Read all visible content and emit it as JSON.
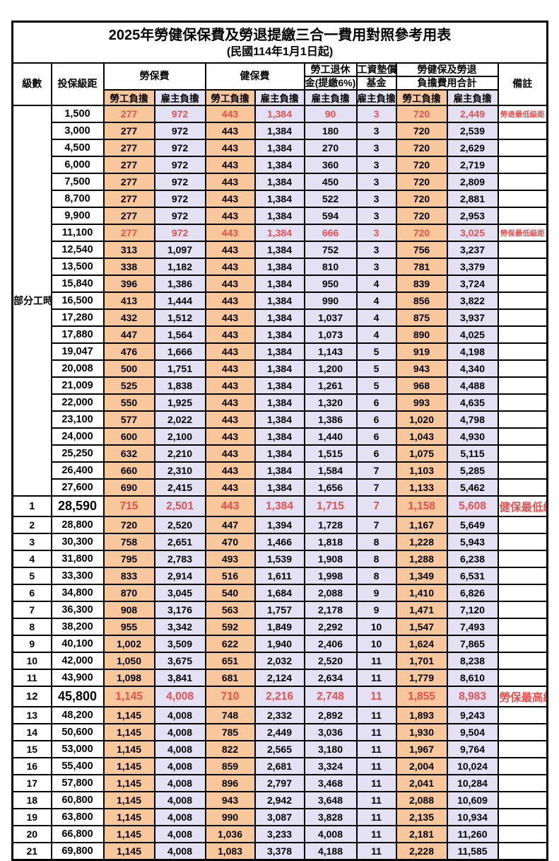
{
  "title": "2025年勞健保保費及勞退提繳三合一費用對照參考用表",
  "subtitle": "(民國114年1月1日起)",
  "header": {
    "level": "級數",
    "bracket": "投保級距",
    "labor_ins": "勞保費",
    "health_ins": "健保費",
    "pension_line1": "勞工退休",
    "pension_line2": "金(提繳6%)",
    "wage_fund_line1": "工資墊償",
    "wage_fund_line2": "基金",
    "total_line1": "勞健保及勞退",
    "total_line2": "負擔費用合計",
    "remarks": "備註",
    "employee": "勞工負擔",
    "employer": "雇主負擔"
  },
  "colors": {
    "employee_bg": "#F9C79C",
    "employer_bg": "#E3E1F3",
    "highlight_red": "#E85050",
    "border": "#000000"
  },
  "part_time": {
    "label": "部分工時",
    "span": 23
  },
  "rows": [
    {
      "level": "",
      "bracket": "1,500",
      "li_emp": "277",
      "li_er": "972",
      "hi_emp": "443",
      "hi_er": "1,384",
      "pension": "90",
      "fund": "3",
      "tot_emp": "720",
      "tot_er": "2,449",
      "remark": "勞退最低級距",
      "red": true,
      "big": false
    },
    {
      "level": "",
      "bracket": "3,000",
      "li_emp": "277",
      "li_er": "972",
      "hi_emp": "443",
      "hi_er": "1,384",
      "pension": "180",
      "fund": "3",
      "tot_emp": "720",
      "tot_er": "2,539",
      "remark": "",
      "red": false,
      "big": false
    },
    {
      "level": "",
      "bracket": "4,500",
      "li_emp": "277",
      "li_er": "972",
      "hi_emp": "443",
      "hi_er": "1,384",
      "pension": "270",
      "fund": "3",
      "tot_emp": "720",
      "tot_er": "2,629",
      "remark": "",
      "red": false,
      "big": false
    },
    {
      "level": "",
      "bracket": "6,000",
      "li_emp": "277",
      "li_er": "972",
      "hi_emp": "443",
      "hi_er": "1,384",
      "pension": "360",
      "fund": "3",
      "tot_emp": "720",
      "tot_er": "2,719",
      "remark": "",
      "red": false,
      "big": false
    },
    {
      "level": "",
      "bracket": "7,500",
      "li_emp": "277",
      "li_er": "972",
      "hi_emp": "443",
      "hi_er": "1,384",
      "pension": "450",
      "fund": "3",
      "tot_emp": "720",
      "tot_er": "2,809",
      "remark": "",
      "red": false,
      "big": false
    },
    {
      "level": "",
      "bracket": "8,700",
      "li_emp": "277",
      "li_er": "972",
      "hi_emp": "443",
      "hi_er": "1,384",
      "pension": "522",
      "fund": "3",
      "tot_emp": "720",
      "tot_er": "2,881",
      "remark": "",
      "red": false,
      "big": false
    },
    {
      "level": "",
      "bracket": "9,900",
      "li_emp": "277",
      "li_er": "972",
      "hi_emp": "443",
      "hi_er": "1,384",
      "pension": "594",
      "fund": "3",
      "tot_emp": "720",
      "tot_er": "2,953",
      "remark": "",
      "red": false,
      "big": false
    },
    {
      "level": "",
      "bracket": "11,100",
      "li_emp": "277",
      "li_er": "972",
      "hi_emp": "443",
      "hi_er": "1,384",
      "pension": "666",
      "fund": "3",
      "tot_emp": "720",
      "tot_er": "3,025",
      "remark": "勞保最低級距",
      "red": true,
      "big": false
    },
    {
      "level": "",
      "bracket": "12,540",
      "li_emp": "313",
      "li_er": "1,097",
      "hi_emp": "443",
      "hi_er": "1,384",
      "pension": "752",
      "fund": "3",
      "tot_emp": "756",
      "tot_er": "3,237",
      "remark": "",
      "red": false,
      "big": false
    },
    {
      "level": "",
      "bracket": "13,500",
      "li_emp": "338",
      "li_er": "1,182",
      "hi_emp": "443",
      "hi_er": "1,384",
      "pension": "810",
      "fund": "3",
      "tot_emp": "781",
      "tot_er": "3,379",
      "remark": "",
      "red": false,
      "big": false
    },
    {
      "level": "",
      "bracket": "15,840",
      "li_emp": "396",
      "li_er": "1,386",
      "hi_emp": "443",
      "hi_er": "1,384",
      "pension": "950",
      "fund": "4",
      "tot_emp": "839",
      "tot_er": "3,724",
      "remark": "",
      "red": false,
      "big": false
    },
    {
      "level": "",
      "bracket": "16,500",
      "li_emp": "413",
      "li_er": "1,444",
      "hi_emp": "443",
      "hi_er": "1,384",
      "pension": "990",
      "fund": "4",
      "tot_emp": "856",
      "tot_er": "3,822",
      "remark": "",
      "red": false,
      "big": false
    },
    {
      "level": "",
      "bracket": "17,280",
      "li_emp": "432",
      "li_er": "1,512",
      "hi_emp": "443",
      "hi_er": "1,384",
      "pension": "1,037",
      "fund": "4",
      "tot_emp": "875",
      "tot_er": "3,937",
      "remark": "",
      "red": false,
      "big": false
    },
    {
      "level": "",
      "bracket": "17,880",
      "li_emp": "447",
      "li_er": "1,564",
      "hi_emp": "443",
      "hi_er": "1,384",
      "pension": "1,073",
      "fund": "4",
      "tot_emp": "890",
      "tot_er": "4,025",
      "remark": "",
      "red": false,
      "big": false
    },
    {
      "level": "",
      "bracket": "19,047",
      "li_emp": "476",
      "li_er": "1,666",
      "hi_emp": "443",
      "hi_er": "1,384",
      "pension": "1,143",
      "fund": "5",
      "tot_emp": "919",
      "tot_er": "4,198",
      "remark": "",
      "red": false,
      "big": false
    },
    {
      "level": "",
      "bracket": "20,008",
      "li_emp": "500",
      "li_er": "1,751",
      "hi_emp": "443",
      "hi_er": "1,384",
      "pension": "1,200",
      "fund": "5",
      "tot_emp": "943",
      "tot_er": "4,340",
      "remark": "",
      "red": false,
      "big": false
    },
    {
      "level": "",
      "bracket": "21,009",
      "li_emp": "525",
      "li_er": "1,838",
      "hi_emp": "443",
      "hi_er": "1,384",
      "pension": "1,261",
      "fund": "5",
      "tot_emp": "968",
      "tot_er": "4,488",
      "remark": "",
      "red": false,
      "big": false
    },
    {
      "level": "",
      "bracket": "22,000",
      "li_emp": "550",
      "li_er": "1,925",
      "hi_emp": "443",
      "hi_er": "1,384",
      "pension": "1,320",
      "fund": "6",
      "tot_emp": "993",
      "tot_er": "4,635",
      "remark": "",
      "red": false,
      "big": false
    },
    {
      "level": "",
      "bracket": "23,100",
      "li_emp": "577",
      "li_er": "2,022",
      "hi_emp": "443",
      "hi_er": "1,384",
      "pension": "1,386",
      "fund": "6",
      "tot_emp": "1,020",
      "tot_er": "4,798",
      "remark": "",
      "red": false,
      "big": false
    },
    {
      "level": "",
      "bracket": "24,000",
      "li_emp": "600",
      "li_er": "2,100",
      "hi_emp": "443",
      "hi_er": "1,384",
      "pension": "1,440",
      "fund": "6",
      "tot_emp": "1,043",
      "tot_er": "4,930",
      "remark": "",
      "red": false,
      "big": false
    },
    {
      "level": "",
      "bracket": "25,250",
      "li_emp": "632",
      "li_er": "2,210",
      "hi_emp": "443",
      "hi_er": "1,384",
      "pension": "1,515",
      "fund": "6",
      "tot_emp": "1,075",
      "tot_er": "5,115",
      "remark": "",
      "red": false,
      "big": false
    },
    {
      "level": "",
      "bracket": "26,400",
      "li_emp": "660",
      "li_er": "2,310",
      "hi_emp": "443",
      "hi_er": "1,384",
      "pension": "1,584",
      "fund": "7",
      "tot_emp": "1,103",
      "tot_er": "5,285",
      "remark": "",
      "red": false,
      "big": false
    },
    {
      "level": "",
      "bracket": "27,600",
      "li_emp": "690",
      "li_er": "2,415",
      "hi_emp": "443",
      "hi_er": "1,384",
      "pension": "1,656",
      "fund": "7",
      "tot_emp": "1,133",
      "tot_er": "5,462",
      "remark": "",
      "red": false,
      "big": false
    },
    {
      "level": "1",
      "bracket": "28,590",
      "li_emp": "715",
      "li_er": "2,501",
      "hi_emp": "443",
      "hi_er": "1,384",
      "pension": "1,715",
      "fund": "7",
      "tot_emp": "1,158",
      "tot_er": "5,608",
      "remark": "健保最低級距",
      "red": true,
      "big": true
    },
    {
      "level": "2",
      "bracket": "28,800",
      "li_emp": "720",
      "li_er": "2,520",
      "hi_emp": "447",
      "hi_er": "1,394",
      "pension": "1,728",
      "fund": "7",
      "tot_emp": "1,167",
      "tot_er": "5,649",
      "remark": "",
      "red": false,
      "big": false
    },
    {
      "level": "3",
      "bracket": "30,300",
      "li_emp": "758",
      "li_er": "2,651",
      "hi_emp": "470",
      "hi_er": "1,466",
      "pension": "1,818",
      "fund": "8",
      "tot_emp": "1,228",
      "tot_er": "5,943",
      "remark": "",
      "red": false,
      "big": false
    },
    {
      "level": "4",
      "bracket": "31,800",
      "li_emp": "795",
      "li_er": "2,783",
      "hi_emp": "493",
      "hi_er": "1,539",
      "pension": "1,908",
      "fund": "8",
      "tot_emp": "1,288",
      "tot_er": "6,238",
      "remark": "",
      "red": false,
      "big": false
    },
    {
      "level": "5",
      "bracket": "33,300",
      "li_emp": "833",
      "li_er": "2,914",
      "hi_emp": "516",
      "hi_er": "1,611",
      "pension": "1,998",
      "fund": "8",
      "tot_emp": "1,349",
      "tot_er": "6,531",
      "remark": "",
      "red": false,
      "big": false
    },
    {
      "level": "6",
      "bracket": "34,800",
      "li_emp": "870",
      "li_er": "3,045",
      "hi_emp": "540",
      "hi_er": "1,684",
      "pension": "2,088",
      "fund": "9",
      "tot_emp": "1,410",
      "tot_er": "6,826",
      "remark": "",
      "red": false,
      "big": false
    },
    {
      "level": "7",
      "bracket": "36,300",
      "li_emp": "908",
      "li_er": "3,176",
      "hi_emp": "563",
      "hi_er": "1,757",
      "pension": "2,178",
      "fund": "9",
      "tot_emp": "1,471",
      "tot_er": "7,120",
      "remark": "",
      "red": false,
      "big": false
    },
    {
      "level": "8",
      "bracket": "38,200",
      "li_emp": "955",
      "li_er": "3,342",
      "hi_emp": "592",
      "hi_er": "1,849",
      "pension": "2,292",
      "fund": "10",
      "tot_emp": "1,547",
      "tot_er": "7,493",
      "remark": "",
      "red": false,
      "big": false
    },
    {
      "level": "9",
      "bracket": "40,100",
      "li_emp": "1,002",
      "li_er": "3,509",
      "hi_emp": "622",
      "hi_er": "1,940",
      "pension": "2,406",
      "fund": "10",
      "tot_emp": "1,624",
      "tot_er": "7,865",
      "remark": "",
      "red": false,
      "big": false
    },
    {
      "level": "10",
      "bracket": "42,000",
      "li_emp": "1,050",
      "li_er": "3,675",
      "hi_emp": "651",
      "hi_er": "2,032",
      "pension": "2,520",
      "fund": "11",
      "tot_emp": "1,701",
      "tot_er": "8,238",
      "remark": "",
      "red": false,
      "big": false
    },
    {
      "level": "11",
      "bracket": "43,900",
      "li_emp": "1,098",
      "li_er": "3,841",
      "hi_emp": "681",
      "hi_er": "2,124",
      "pension": "2,634",
      "fund": "11",
      "tot_emp": "1,779",
      "tot_er": "8,610",
      "remark": "",
      "red": false,
      "big": false
    },
    {
      "level": "12",
      "bracket": "45,800",
      "li_emp": "1,145",
      "li_er": "4,008",
      "hi_emp": "710",
      "hi_er": "2,216",
      "pension": "2,748",
      "fund": "11",
      "tot_emp": "1,855",
      "tot_er": "8,983",
      "remark": "勞保最高級距",
      "red": true,
      "big": true
    },
    {
      "level": "13",
      "bracket": "48,200",
      "li_emp": "1,145",
      "li_er": "4,008",
      "hi_emp": "748",
      "hi_er": "2,332",
      "pension": "2,892",
      "fund": "11",
      "tot_emp": "1,893",
      "tot_er": "9,243",
      "remark": "",
      "red": false,
      "big": false
    },
    {
      "level": "14",
      "bracket": "50,600",
      "li_emp": "1,145",
      "li_er": "4,008",
      "hi_emp": "785",
      "hi_er": "2,449",
      "pension": "3,036",
      "fund": "11",
      "tot_emp": "1,930",
      "tot_er": "9,504",
      "remark": "",
      "red": false,
      "big": false
    },
    {
      "level": "15",
      "bracket": "53,000",
      "li_emp": "1,145",
      "li_er": "4,008",
      "hi_emp": "822",
      "hi_er": "2,565",
      "pension": "3,180",
      "fund": "11",
      "tot_emp": "1,967",
      "tot_er": "9,764",
      "remark": "",
      "red": false,
      "big": false
    },
    {
      "level": "16",
      "bracket": "55,400",
      "li_emp": "1,145",
      "li_er": "4,008",
      "hi_emp": "859",
      "hi_er": "2,681",
      "pension": "3,324",
      "fund": "11",
      "tot_emp": "2,004",
      "tot_er": "10,024",
      "remark": "",
      "red": false,
      "big": false
    },
    {
      "level": "17",
      "bracket": "57,800",
      "li_emp": "1,145",
      "li_er": "4,008",
      "hi_emp": "896",
      "hi_er": "2,797",
      "pension": "3,468",
      "fund": "11",
      "tot_emp": "2,041",
      "tot_er": "10,284",
      "remark": "",
      "red": false,
      "big": false
    },
    {
      "level": "18",
      "bracket": "60,800",
      "li_emp": "1,145",
      "li_er": "4,008",
      "hi_emp": "943",
      "hi_er": "2,942",
      "pension": "3,648",
      "fund": "11",
      "tot_emp": "2,088",
      "tot_er": "10,609",
      "remark": "",
      "red": false,
      "big": false
    },
    {
      "level": "19",
      "bracket": "63,800",
      "li_emp": "1,145",
      "li_er": "4,008",
      "hi_emp": "990",
      "hi_er": "3,087",
      "pension": "3,828",
      "fund": "11",
      "tot_emp": "2,135",
      "tot_er": "10,934",
      "remark": "",
      "red": false,
      "big": false
    },
    {
      "level": "20",
      "bracket": "66,800",
      "li_emp": "1,145",
      "li_er": "4,008",
      "hi_emp": "1,036",
      "hi_er": "3,233",
      "pension": "4,008",
      "fund": "11",
      "tot_emp": "2,181",
      "tot_er": "11,260",
      "remark": "",
      "red": false,
      "big": false
    },
    {
      "level": "21",
      "bracket": "69,800",
      "li_emp": "1,145",
      "li_er": "4,008",
      "hi_emp": "1,083",
      "hi_er": "3,378",
      "pension": "4,188",
      "fund": "11",
      "tot_emp": "2,228",
      "tot_er": "11,585",
      "remark": "",
      "red": false,
      "big": false
    }
  ]
}
